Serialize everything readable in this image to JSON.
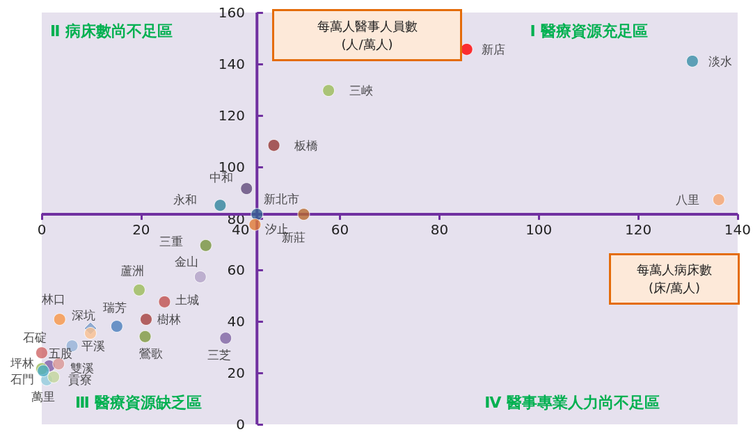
{
  "chart_data": {
    "type": "scatter",
    "xlabel": "每萬人病床數\n(床/萬人)",
    "ylabel": "每萬人醫事人員數\n(人/萬人)",
    "xlim": [
      0,
      140
    ],
    "xticks": [
      0,
      20,
      40,
      60,
      80,
      100,
      120,
      140
    ],
    "ylim": [
      0,
      160
    ],
    "yticks": [
      0,
      20,
      40,
      60,
      80,
      100,
      120,
      140,
      160
    ],
    "grid": false,
    "legend": false,
    "marker": "circle",
    "annotations": [
      "Ⅱ 病床數尚不足區",
      "Ⅰ 醫療資源充足區",
      "Ⅲ 醫療資源缺乏區",
      "Ⅳ 醫事專業人力尚不足區"
    ],
    "ref_lines": [
      {
        "axis": "x",
        "value": 43.3,
        "color": "#7030a0"
      },
      {
        "axis": "y",
        "value": 81.6,
        "color": "#7030a0"
      }
    ],
    "series": [
      {
        "name": "新店",
        "color": "#ff0000",
        "x": [
          85.5
        ],
        "values": [
          145.7
        ]
      },
      {
        "name": "淡水",
        "color": "#3a8fa8",
        "x": [
          130.9
        ],
        "values": [
          141.1
        ]
      },
      {
        "name": "三峽",
        "color": "#9bbb59",
        "x": [
          57.7
        ],
        "values": [
          129.7
        ]
      },
      {
        "name": "板橋",
        "color": "#953735",
        "x": [
          46.7
        ],
        "values": [
          108.4
        ]
      },
      {
        "name": "八里",
        "color": "#f6a56e",
        "x": [
          136.2
        ],
        "values": [
          87.3
        ]
      },
      {
        "name": "中和",
        "color": "#604a7b",
        "x": [
          41.2
        ],
        "values": [
          91.6
        ]
      },
      {
        "name": "永和",
        "color": "#31859c",
        "x": [
          35.9
        ],
        "values": [
          85.1
        ]
      },
      {
        "name": "新北市",
        "color": "#366092",
        "x": [
          43.3
        ],
        "values": [
          81.6
        ]
      },
      {
        "name": "新莊",
        "color": "#b7692e",
        "x": [
          52.7
        ],
        "values": [
          81.6
        ]
      },
      {
        "name": "汐止",
        "color": "#e07b34",
        "x": [
          42.9
        ],
        "values": [
          77.6
        ]
      },
      {
        "name": "三重",
        "color": "#77933c",
        "x": [
          33.0
        ],
        "values": [
          69.5
        ]
      },
      {
        "name": "金山",
        "color": "#b3a2c7",
        "x": [
          31.9
        ],
        "values": [
          57.3
        ]
      },
      {
        "name": "蘆洲",
        "color": "#9bbb59",
        "x": [
          19.6
        ],
        "values": [
          52.2
        ]
      },
      {
        "name": "土城",
        "color": "#c0504d",
        "x": [
          24.7
        ],
        "values": [
          47.6
        ]
      },
      {
        "name": "樹林",
        "color": "#a5403d",
        "x": [
          21.0
        ],
        "values": [
          40.8
        ]
      },
      {
        "name": "瑞芳",
        "color": "#4a7ebb",
        "x": [
          15.1
        ],
        "values": [
          38.1
        ]
      },
      {
        "name": "鶯歌",
        "color": "#7f9a3f",
        "x": [
          20.8
        ],
        "values": [
          34.1
        ]
      },
      {
        "name": "三芝",
        "color": "#8064a2",
        "x": [
          37.0
        ],
        "values": [
          33.5
        ]
      },
      {
        "name": "林口",
        "color": "#f79646",
        "x": [
          3.6
        ],
        "values": [
          40.8
        ]
      },
      {
        "color": "#7a9cc8",
        "marker": "diamond",
        "x": [
          9.8
        ],
        "values": [
          37.3
        ]
      },
      {
        "name": "深坑",
        "color": "#fac090",
        "x": [
          9.8
        ],
        "values": [
          35.4
        ]
      },
      {
        "name": "平溪",
        "color": "#95b3d7",
        "x": [
          6.1
        ],
        "values": [
          30.5
        ]
      },
      {
        "name": "石碇",
        "color": "#d06565",
        "x": [
          0.0
        ],
        "values": [
          27.8
        ]
      },
      {
        "name": "五股",
        "color": "#7f5fa6",
        "x": [
          1.5
        ],
        "values": [
          22.7
        ]
      },
      {
        "name": "雙溪",
        "color": "#d99694",
        "x": [
          3.4
        ],
        "values": [
          23.5
        ]
      },
      {
        "name": "坪林",
        "color": "#9bbb59",
        "x": [
          0.0
        ],
        "values": [
          21.6
        ]
      },
      {
        "name": "萬里",
        "color": "#93cddd",
        "x": [
          1.0
        ],
        "values": [
          17.3
        ]
      },
      {
        "name": "貢寮",
        "color": "#c3d69b",
        "x": [
          2.4
        ],
        "values": [
          18.4
        ]
      },
      {
        "name": "石門",
        "color": "#4bacc6",
        "x": [
          0.3
        ],
        "values": [
          20.8
        ]
      }
    ]
  }
}
